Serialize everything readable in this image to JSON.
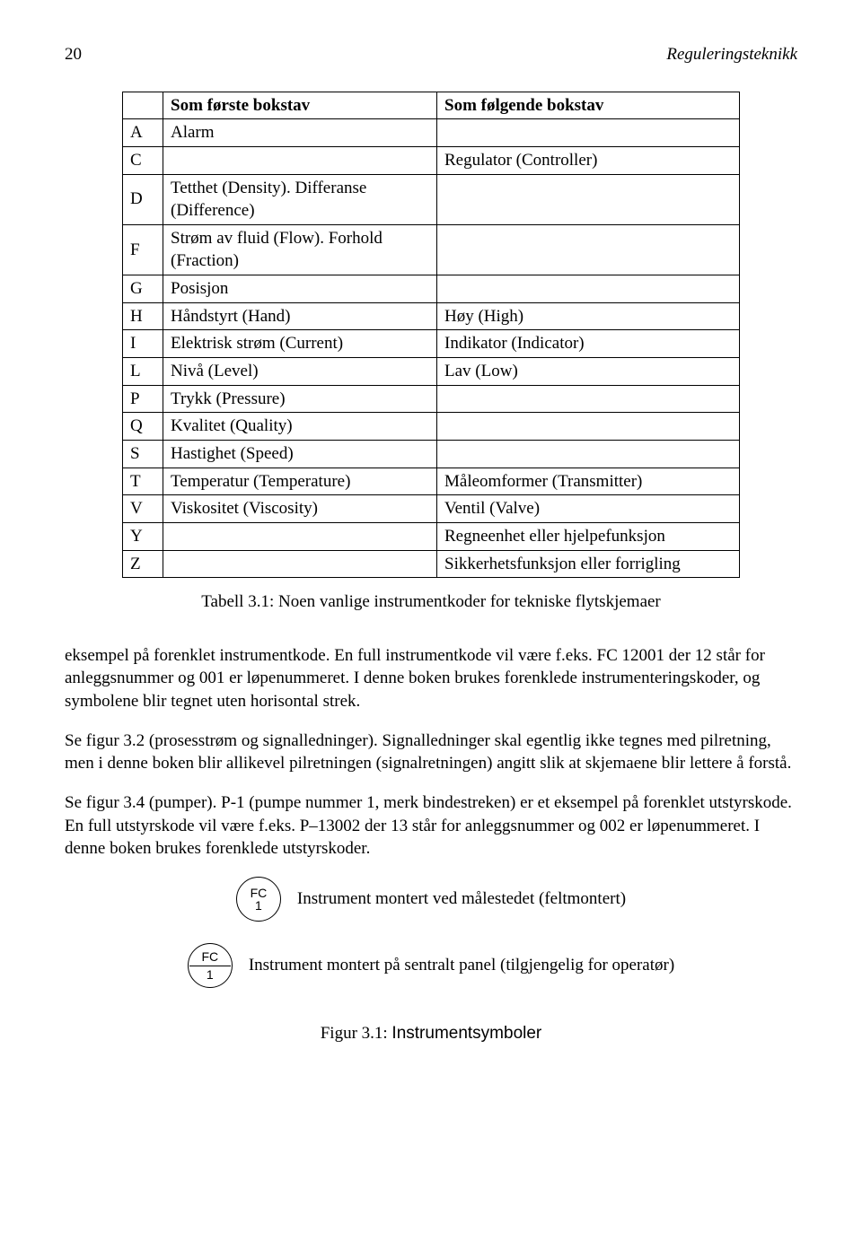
{
  "header": {
    "page_number": "20",
    "book_title": "Reguleringsteknikk"
  },
  "codes_table": {
    "columns": [
      "",
      "Som første bokstav",
      "Som følgende bokstav"
    ],
    "rows": [
      [
        "A",
        "Alarm",
        ""
      ],
      [
        "C",
        "",
        "Regulator (Controller)"
      ],
      [
        "D",
        "Tetthet (Density). Differanse (Difference)",
        ""
      ],
      [
        "F",
        "Strøm av fluid (Flow). Forhold (Fraction)",
        ""
      ],
      [
        "G",
        "Posisjon",
        ""
      ],
      [
        "H",
        "Håndstyrt (Hand)",
        "Høy (High)"
      ],
      [
        "I",
        "Elektrisk strøm (Current)",
        "Indikator (Indicator)"
      ],
      [
        "L",
        "Nivå (Level)",
        "Lav (Low)"
      ],
      [
        "P",
        "Trykk (Pressure)",
        ""
      ],
      [
        "Q",
        "Kvalitet (Quality)",
        ""
      ],
      [
        "S",
        "Hastighet (Speed)",
        ""
      ],
      [
        "T",
        "Temperatur (Temperature)",
        "Måleomformer (Transmitter)"
      ],
      [
        "V",
        "Viskositet (Viscosity)",
        "Ventil (Valve)"
      ],
      [
        "Y",
        "",
        "Regneenhet eller hjelpefunksjon"
      ],
      [
        "Z",
        "",
        "Sikkerhetsfunksjon eller forrigling"
      ]
    ]
  },
  "table_caption": "Tabell 3.1: Noen vanlige instrumentkoder for tekniske flytskjemaer",
  "paragraphs": {
    "p1": "eksempel på forenklet instrumentkode. En full instrumentkode vil være f.eks. FC 12001 der 12 står for anleggsnummer og 001 er løpenummeret. I denne boken brukes forenklede instrumenteringskoder, og symbolene blir tegnet uten horisontal strek.",
    "p2": "Se figur 3.2 (prosesstrøm og signalledninger). Signalledninger skal egentlig ikke tegnes med pilretning, men i denne boken blir allikevel pilretningen (signalretningen) angitt slik at skjemaene blir lettere å forstå.",
    "p3": "Se figur 3.4 (pumper). P-1 (pumpe nummer 1, merk bindestreken) er et eksempel på forenklet utstyrskode. En full utstyrskode vil være f.eks. P–13002 der 13 står for anleggsnummer og 002 er løpenummeret. I denne boken brukes forenklede utstyrskoder."
  },
  "symbols": {
    "row1": {
      "code": "FC",
      "num": "1",
      "label": "Instrument montert ved målestedet (feltmontert)"
    },
    "row2": {
      "code": "FC",
      "num": "1",
      "label": "Instrument montert på sentralt panel (tilgjengelig for operatør)"
    }
  },
  "figure_caption": {
    "lead": "Figur 3.1: ",
    "title": "Instrumentsymboler"
  }
}
